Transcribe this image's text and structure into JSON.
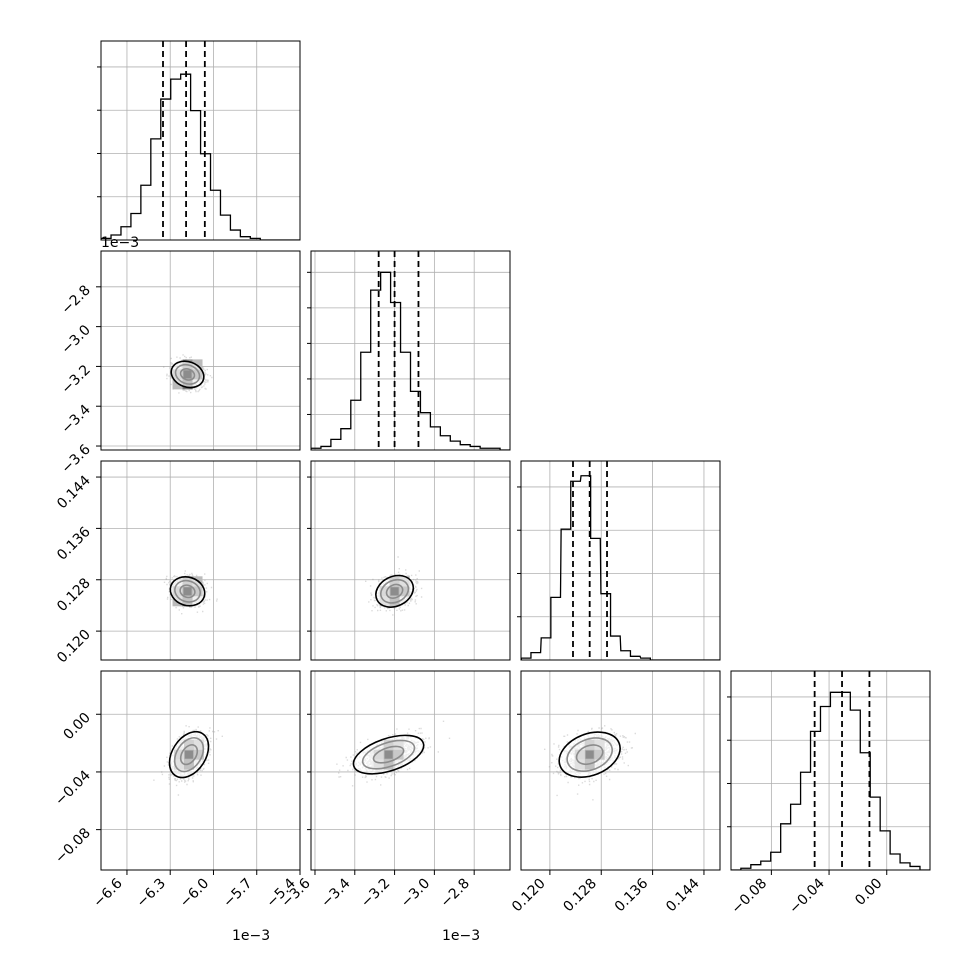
{
  "chart_data": {
    "type": "corner",
    "grid": true,
    "hist_bins": 20,
    "quantiles": [
      0.16,
      0.5,
      0.84
    ],
    "parameters": [
      {
        "range": [
          -6.78,
          -5.4
        ],
        "ticks": [
          "−6.6",
          "−6.3",
          "−6.0",
          "−5.7",
          "−5.4"
        ],
        "tick_values": [
          -6.6,
          -6.3,
          -6.0,
          -5.7,
          -5.4
        ],
        "offset_label": "1e−3",
        "hist_x": [
          -6.745,
          -6.676,
          -6.607,
          -6.538,
          -6.469,
          -6.4,
          -6.331,
          -6.262,
          -6.193,
          -6.124,
          -6.055,
          -5.986,
          -5.917,
          -5.848,
          -5.779,
          -5.71,
          -5.641,
          -5.572,
          -5.503,
          -5.434
        ],
        "hist_counts": [
          0.01,
          0.03,
          0.08,
          0.16,
          0.33,
          0.61,
          0.85,
          0.97,
          1.0,
          0.78,
          0.52,
          0.3,
          0.15,
          0.06,
          0.02,
          0.01,
          0.0,
          0.0,
          0.0,
          0.0
        ],
        "hist_ymax": 1.2,
        "hist_yticks": 4,
        "quantile_values": [
          -6.35,
          -6.19,
          -6.06
        ],
        "mean": -6.18,
        "sd": 0.12
      },
      {
        "range": [
          -3.62,
          -2.62
        ],
        "ticks": [
          "−3.6",
          "−3.4",
          "−3.2",
          "−3.0",
          "−2.8"
        ],
        "tick_values": [
          -3.6,
          -3.4,
          -3.2,
          -3.0,
          -2.8
        ],
        "offset_label": "1e−3",
        "hist_x": [
          -3.595,
          -3.545,
          -3.495,
          -3.445,
          -3.395,
          -3.345,
          -3.295,
          -3.245,
          -3.195,
          -3.145,
          -3.095,
          -3.045,
          -2.995,
          -2.945,
          -2.895,
          -2.845,
          -2.795,
          -2.745,
          -2.695,
          -2.645
        ],
        "hist_counts": [
          0.01,
          0.02,
          0.06,
          0.12,
          0.28,
          0.55,
          0.9,
          1.0,
          0.83,
          0.55,
          0.33,
          0.21,
          0.13,
          0.08,
          0.05,
          0.03,
          0.02,
          0.01,
          0.01,
          0.0
        ],
        "hist_ymax": 1.12,
        "hist_yticks": 5,
        "quantile_values": [
          -3.28,
          -3.2,
          -3.08
        ],
        "mean": -3.21,
        "sd": 0.09
      },
      {
        "range": [
          0.1155,
          0.1465
        ],
        "ticks": [
          "0.120",
          "0.128",
          "0.136",
          "0.144"
        ],
        "tick_values": [
          0.12,
          0.128,
          0.136,
          0.144
        ],
        "offset_label": "",
        "hist_x": [
          0.1163,
          0.1178,
          0.1194,
          0.1209,
          0.1225,
          0.124,
          0.1256,
          0.1271,
          0.1287,
          0.1302,
          0.1318,
          0.1333,
          0.1349,
          0.1364,
          0.138,
          0.1395,
          0.1411,
          0.1426,
          0.1442,
          0.1457
        ],
        "hist_counts": [
          0.01,
          0.04,
          0.12,
          0.34,
          0.71,
          0.97,
          1.0,
          0.66,
          0.36,
          0.13,
          0.05,
          0.02,
          0.01,
          0.0,
          0.0,
          0.0,
          0.0,
          0.0,
          0.0,
          0.0
        ],
        "hist_ymax": 1.08,
        "hist_yticks": 4,
        "quantile_values": [
          0.1236,
          0.1262,
          0.1289
        ],
        "mean": 0.1262,
        "sd": 0.0026
      },
      {
        "range": [
          -0.108,
          0.03
        ],
        "ticks": [
          "−0.08",
          "−0.04",
          "0.00"
        ],
        "tick_values": [
          -0.08,
          -0.04,
          0.0
        ],
        "offset_label": "",
        "hist_x": [
          -0.1046,
          -0.0977,
          -0.0908,
          -0.0839,
          -0.077,
          -0.0701,
          -0.0632,
          -0.0563,
          -0.0494,
          -0.0425,
          -0.0356,
          -0.0287,
          -0.0218,
          -0.0149,
          -0.008,
          -0.0011,
          0.0058,
          0.0127,
          0.0196,
          0.0265
        ],
        "hist_counts": [
          0.0,
          0.01,
          0.03,
          0.05,
          0.1,
          0.26,
          0.37,
          0.55,
          0.78,
          0.92,
          1.0,
          1.0,
          0.9,
          0.66,
          0.41,
          0.22,
          0.09,
          0.04,
          0.02,
          0.0
        ],
        "hist_ymax": 1.12,
        "hist_yticks": 4,
        "quantile_values": [
          -0.05,
          -0.031,
          -0.012
        ],
        "mean": -0.032,
        "sd": 0.022
      }
    ],
    "pairs": [
      {
        "row": 1,
        "col": 0,
        "mx": -6.18,
        "my": -3.24,
        "rot": -0.35,
        "rx": 0.1,
        "ry": 0.055
      },
      {
        "row": 2,
        "col": 0,
        "mx": -6.18,
        "my": 0.1262,
        "rot": -0.32,
        "rx": 0.105,
        "ry": 0.0019
      },
      {
        "row": 2,
        "col": 1,
        "mx": -3.2,
        "my": 0.1262,
        "rot": 0.45,
        "rx": 0.085,
        "ry": 0.002
      },
      {
        "row": 3,
        "col": 0,
        "mx": -6.17,
        "my": -0.028,
        "rot": 1.0,
        "rx": 0.15,
        "ry": 0.01
      },
      {
        "row": 3,
        "col": 1,
        "mx": -3.23,
        "my": -0.028,
        "rot": -1.25,
        "rx": 0.07,
        "ry": 0.022
      },
      {
        "row": 3,
        "col": 2,
        "mx": 0.1262,
        "my": -0.028,
        "rot": -1.2,
        "rx": 0.0028,
        "ry": 0.019
      }
    ]
  }
}
